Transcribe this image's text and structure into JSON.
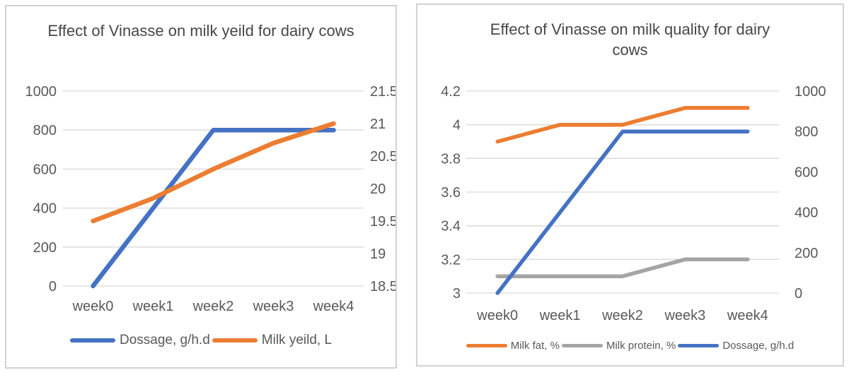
{
  "window": {
    "background": "#ffffff",
    "card_border": "#d2d2d2"
  },
  "chart_data": [
    {
      "type": "line",
      "title": "Effect of Vinasse on milk yeild for dairy cows",
      "categories": [
        "week0",
        "week1",
        "week2",
        "week3",
        "week4"
      ],
      "y_axis_left": {
        "min": 0,
        "max": 1000,
        "ticks": [
          "1000",
          "800",
          "600",
          "400",
          "200",
          "0"
        ]
      },
      "y_axis_right": {
        "min": 18.5,
        "max": 21.5,
        "ticks": [
          "21.5",
          "21",
          "20.5",
          "20",
          "19.5",
          "19",
          "18.5"
        ]
      },
      "series": [
        {
          "name": "Dossage, g/h.d",
          "axis": "left",
          "color": "#4472C4",
          "values": [
            0,
            400,
            800,
            800,
            800
          ]
        },
        {
          "name": "Milk yeild, L",
          "axis": "right",
          "color": "#ED7D31",
          "values": [
            19.5,
            19.85,
            20.3,
            20.7,
            21
          ]
        }
      ],
      "legend_position": "bottom",
      "grid": "horizontal",
      "colors": {
        "grid": "#D9D9D9",
        "tick_text": "#595959",
        "title_text": "#474747"
      }
    },
    {
      "type": "line",
      "title": "Effect of Vinasse on milk quality for dairy cows",
      "categories": [
        "week0",
        "week1",
        "week2",
        "week3",
        "week4"
      ],
      "y_axis_left": {
        "min": 3,
        "max": 4.2,
        "ticks": [
          "4.2",
          "4",
          "3.8",
          "3.6",
          "3.4",
          "3.2",
          "3"
        ]
      },
      "y_axis_right": {
        "min": 0,
        "max": 1000,
        "ticks": [
          "1000",
          "800",
          "600",
          "400",
          "200",
          "0"
        ]
      },
      "series": [
        {
          "name": "Milk fat, %",
          "axis": "left",
          "color": "#ED7D31",
          "values": [
            3.9,
            4,
            4,
            4.1,
            4.1
          ]
        },
        {
          "name": "Milk protein, %",
          "axis": "left",
          "color": "#A5A5A5",
          "values": [
            3.1,
            3.1,
            3.1,
            3.2,
            3.2
          ]
        },
        {
          "name": "Dossage, g/h.d",
          "axis": "right",
          "color": "#4472C4",
          "values": [
            0,
            400,
            800,
            800,
            800
          ]
        }
      ],
      "legend_position": "bottom",
      "grid": "horizontal",
      "colors": {
        "grid": "#D9D9D9",
        "tick_text": "#595959",
        "title_text": "#474747"
      }
    }
  ]
}
